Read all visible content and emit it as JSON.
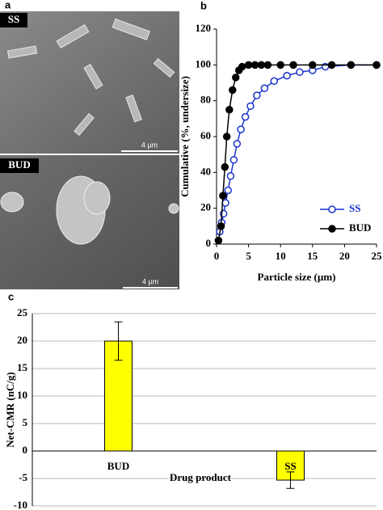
{
  "panel_a": {
    "label": "a",
    "images": [
      {
        "label": "SS",
        "scale_bar": "4 µm"
      },
      {
        "label": "BUD",
        "scale_bar": "4 µm"
      }
    ]
  },
  "chart_data": [
    {
      "type": "line",
      "panel_label": "b",
      "xlabel": "Particle size (µm)",
      "ylabel": "Cumulative (%, undersize)",
      "xlim": [
        0,
        25
      ],
      "xticks": [
        0,
        5,
        10,
        15,
        20,
        25
      ],
      "ylim": [
        0,
        120
      ],
      "yticks": [
        0,
        20,
        40,
        60,
        80,
        100,
        120
      ],
      "legend_position": "center right",
      "series": [
        {
          "name": "SS",
          "color": "#1a33cc",
          "filled": false,
          "x": [
            0.5,
            0.8,
            1.1,
            1.4,
            1.8,
            2.2,
            2.7,
            3.2,
            3.8,
            4.5,
            5.3,
            6.3,
            7.5,
            9,
            11,
            13,
            15,
            17,
            21,
            25
          ],
          "values": [
            7,
            12,
            17,
            23,
            30,
            38,
            47,
            56,
            64,
            71,
            77,
            83,
            87,
            91,
            94,
            96,
            97,
            99,
            100,
            100
          ]
        },
        {
          "name": "BUD",
          "color": "#000000",
          "filled": true,
          "x": [
            0.3,
            0.7,
            1,
            1.3,
            1.6,
            2,
            2.5,
            3,
            3.5,
            4,
            5,
            6,
            7,
            8,
            10,
            12,
            15,
            18,
            21,
            25
          ],
          "values": [
            2,
            10,
            27,
            43,
            60,
            75,
            86,
            93,
            97,
            99,
            100,
            100,
            100,
            100,
            100,
            100,
            100,
            100,
            100,
            100
          ]
        }
      ]
    },
    {
      "type": "bar",
      "panel_label": "c",
      "xlabel": "Drug product",
      "ylabel": "Net-CMR (nC/g)",
      "categories": [
        "BUD",
        "SS"
      ],
      "values": [
        20,
        -5.3
      ],
      "errors": [
        3.5,
        1.5
      ],
      "color": "#ffff00",
      "ylim": [
        -10,
        25
      ],
      "yticks": [
        -10,
        -5,
        0,
        5,
        10,
        15,
        20,
        25
      ],
      "grid": true
    }
  ]
}
